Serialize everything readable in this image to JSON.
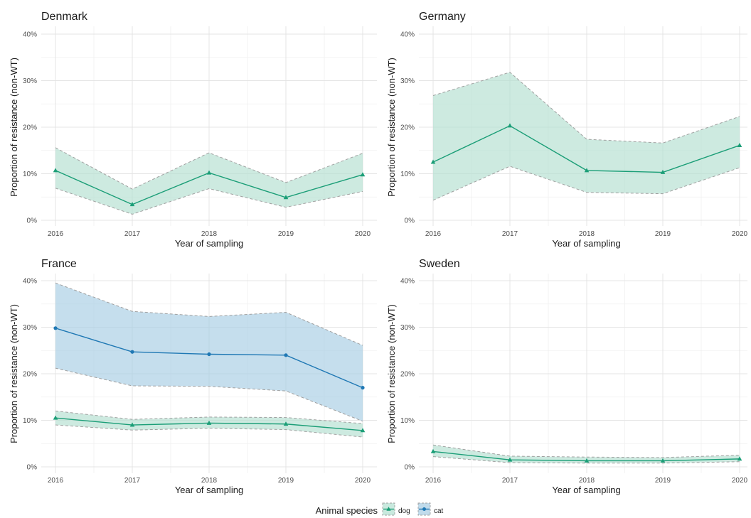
{
  "chart_data": {
    "type": "line",
    "x": [
      2016,
      2017,
      2018,
      2019,
      2020
    ],
    "xlabel": "Year of sampling",
    "ylabel": "Proportion of resistance (non-WT)",
    "yticks": [
      "0%",
      "10%",
      "20%",
      "30%",
      "40%"
    ],
    "ylim": [
      0,
      40
    ],
    "grid": true,
    "legend": {
      "title": "Animal species",
      "position": "bottom",
      "entries": [
        {
          "name": "dog",
          "color": "#1b9e77",
          "fill": "#b2dfd0",
          "marker": "triangle"
        },
        {
          "name": "cat",
          "color": "#1f78b4",
          "fill": "#a6cce3",
          "marker": "circle"
        }
      ]
    },
    "panels": [
      {
        "title": "Denmark",
        "series": [
          {
            "name": "dog",
            "values": [
              10.7,
              3.4,
              10.2,
              4.9,
              9.8
            ],
            "lower": [
              6.9,
              1.3,
              6.8,
              2.8,
              6.2
            ],
            "upper": [
              15.6,
              6.7,
              14.5,
              8.1,
              14.4
            ]
          }
        ]
      },
      {
        "title": "Germany",
        "series": [
          {
            "name": "dog",
            "values": [
              12.5,
              20.3,
              10.7,
              10.3,
              16.1
            ],
            "lower": [
              4.3,
              11.6,
              6.0,
              5.7,
              11.3
            ],
            "upper": [
              26.8,
              31.8,
              17.4,
              16.6,
              22.3
            ]
          }
        ]
      },
      {
        "title": "France",
        "series": [
          {
            "name": "dog",
            "values": [
              10.5,
              9.0,
              9.4,
              9.2,
              7.8
            ],
            "lower": [
              9.0,
              7.9,
              8.3,
              8.0,
              6.4
            ],
            "upper": [
              12.0,
              10.2,
              10.7,
              10.6,
              9.3
            ]
          },
          {
            "name": "cat",
            "values": [
              29.8,
              24.7,
              24.2,
              24.0,
              17.0
            ],
            "lower": [
              21.2,
              17.4,
              17.3,
              16.3,
              9.8
            ],
            "upper": [
              39.5,
              33.4,
              32.3,
              33.2,
              26.1
            ]
          }
        ]
      },
      {
        "title": "Sweden",
        "series": [
          {
            "name": "dog",
            "values": [
              3.3,
              1.5,
              1.3,
              1.3,
              1.7
            ],
            "lower": [
              2.2,
              0.9,
              0.8,
              0.8,
              1.1
            ],
            "upper": [
              4.7,
              2.3,
              2.1,
              2.0,
              2.5
            ]
          }
        ]
      }
    ]
  }
}
